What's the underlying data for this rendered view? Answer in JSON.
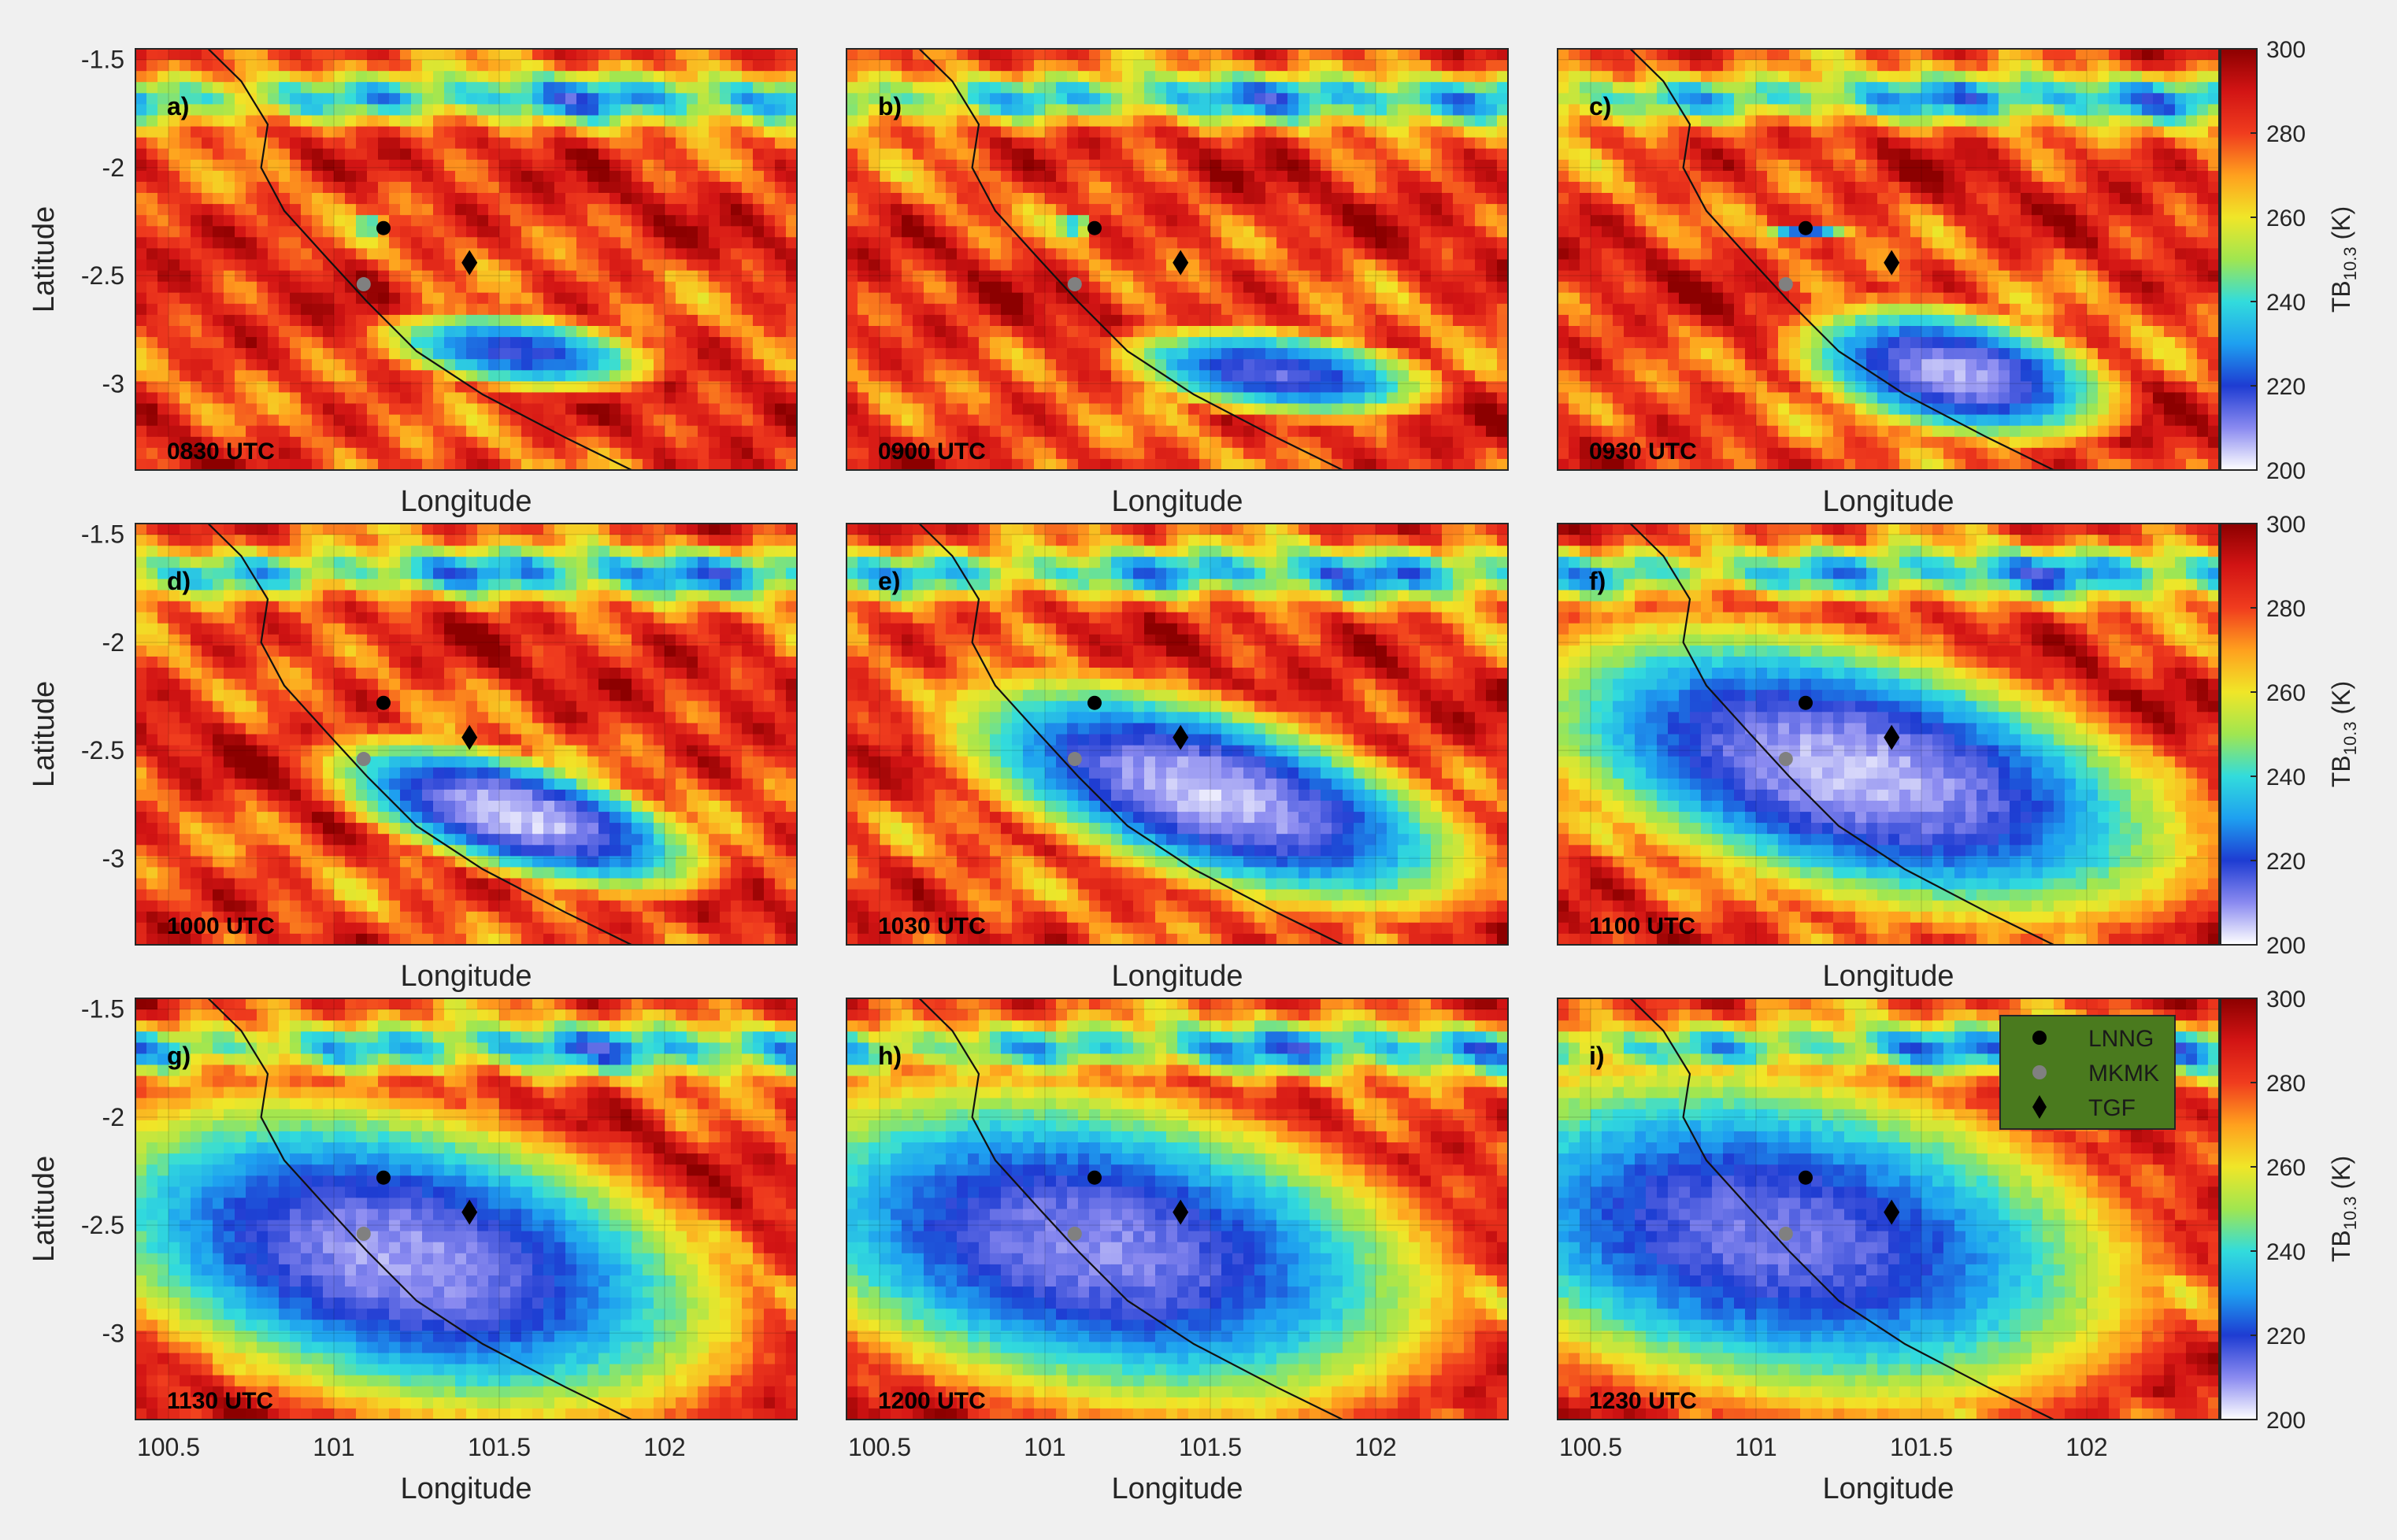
{
  "chart_data": {
    "type": "heatmap",
    "title": "",
    "layout": "3x3 grid of brightness-temperature maps",
    "xlabel": "Longitude",
    "ylabel": "Latitude",
    "xlim": [
      100.4,
      102.4
    ],
    "ylim": [
      -3.4,
      -1.45
    ],
    "xticks": [
      100.5,
      101,
      101.5,
      102
    ],
    "xtick_labels": [
      "100.5",
      "101",
      "101.5",
      "102"
    ],
    "yticks": [
      -1.5,
      -2,
      -2.5,
      -3
    ],
    "ytick_labels": [
      "-1.5",
      "-2",
      "-2.5",
      "-3"
    ],
    "colorbar": {
      "label_main": "TB",
      "label_sub": "10.3",
      "label_unit": " (K)",
      "range": [
        200,
        300
      ],
      "ticks": [
        200,
        220,
        240,
        260,
        280,
        300
      ],
      "tick_labels": [
        "200",
        "220",
        "240",
        "260",
        "280",
        "300"
      ],
      "colors": [
        "#ffffff",
        "#8a8af0",
        "#1e3cd2",
        "#1ea0f0",
        "#32dcdc",
        "#a0e650",
        "#f0e628",
        "#ffa01e",
        "#f03c1e",
        "#d21414",
        "#8c0000"
      ]
    },
    "markers": [
      {
        "name": "LNNG",
        "lon": 101.15,
        "lat": -2.28,
        "symbol": "circle",
        "color": "#000000"
      },
      {
        "name": "MKMK",
        "lon": 101.09,
        "lat": -2.54,
        "symbol": "circle",
        "color": "#808080"
      },
      {
        "name": "TGF",
        "lon": 101.41,
        "lat": -2.44,
        "symbol": "diamond",
        "color": "#000000"
      }
    ],
    "legend": {
      "position": "top-right of panel i",
      "background": "#4a7a1e",
      "entries": [
        "LNNG",
        "MKMK",
        "TGF"
      ]
    },
    "coastline": [
      [
        100.62,
        -1.45
      ],
      [
        100.72,
        -1.6
      ],
      [
        100.8,
        -1.8
      ],
      [
        100.78,
        -2.0
      ],
      [
        100.85,
        -2.2
      ],
      [
        100.98,
        -2.42
      ],
      [
        101.1,
        -2.62
      ],
      [
        101.25,
        -2.85
      ],
      [
        101.45,
        -3.05
      ],
      [
        101.7,
        -3.25
      ],
      [
        101.9,
        -3.4
      ]
    ],
    "panels": [
      {
        "label": "a)",
        "time": "0830 UTC",
        "cold_cells": [
          {
            "lon": 101.55,
            "lat": -2.85,
            "rx": 0.45,
            "ry": 0.18,
            "rot": -10,
            "tmin": 218
          },
          {
            "lon": 101.1,
            "lat": -2.27,
            "rx": 0.07,
            "ry": 0.05,
            "rot": 0,
            "tmin": 228
          }
        ],
        "rain_fraction": 0.0
      },
      {
        "label": "b)",
        "time": "0900 UTC",
        "cold_cells": [
          {
            "lon": 101.7,
            "lat": -2.95,
            "rx": 0.5,
            "ry": 0.2,
            "rot": -10,
            "tmin": 214
          },
          {
            "lon": 101.08,
            "lat": -2.27,
            "rx": 0.08,
            "ry": 0.05,
            "rot": 0,
            "tmin": 226
          }
        ],
        "rain_fraction": 0.0
      },
      {
        "label": "c)",
        "time": "0930 UTC",
        "cold_cells": [
          {
            "lon": 101.6,
            "lat": -2.95,
            "rx": 0.5,
            "ry": 0.28,
            "rot": -20,
            "tmin": 206
          },
          {
            "lon": 101.15,
            "lat": -2.3,
            "rx": 0.15,
            "ry": 0.05,
            "rot": 0,
            "tmin": 224
          }
        ],
        "rain_fraction": 0.0
      },
      {
        "label": "d)",
        "time": "1000 UTC",
        "cold_cells": [
          {
            "lon": 101.55,
            "lat": -2.8,
            "rx": 0.6,
            "ry": 0.25,
            "rot": -25,
            "tmin": 203
          }
        ],
        "rain_fraction": 0.0
      },
      {
        "label": "e)",
        "time": "1030 UTC",
        "cold_cells": [
          {
            "lon": 101.5,
            "lat": -2.7,
            "rx": 0.85,
            "ry": 0.38,
            "rot": -28,
            "tmin": 204
          }
        ],
        "rain_fraction": 0.0
      },
      {
        "label": "f)",
        "time": "1100 UTC",
        "cold_cells": [
          {
            "lon": 101.3,
            "lat": -2.6,
            "rx": 1.05,
            "ry": 0.55,
            "rot": -25,
            "tmin": 205
          }
        ],
        "rain_fraction": 0.0
      },
      {
        "label": "g)",
        "time": "1130 UTC",
        "cold_cells": [
          {
            "lon": 101.2,
            "lat": -2.65,
            "rx": 1.05,
            "ry": 0.65,
            "rot": -25,
            "tmin": 208
          }
        ],
        "rain_fraction": 0.0
      },
      {
        "label": "h)",
        "time": "1200 UTC",
        "cold_cells": [
          {
            "lon": 101.15,
            "lat": -2.6,
            "rx": 1.1,
            "ry": 0.7,
            "rot": -22,
            "tmin": 210
          }
        ],
        "rain_fraction": 0.0
      },
      {
        "label": "i)",
        "time": "1230 UTC",
        "cold_cells": [
          {
            "lon": 101.05,
            "lat": -2.55,
            "rx": 1.15,
            "ry": 0.75,
            "rot": -20,
            "tmin": 212
          }
        ],
        "rain_fraction": 0.0
      }
    ]
  }
}
